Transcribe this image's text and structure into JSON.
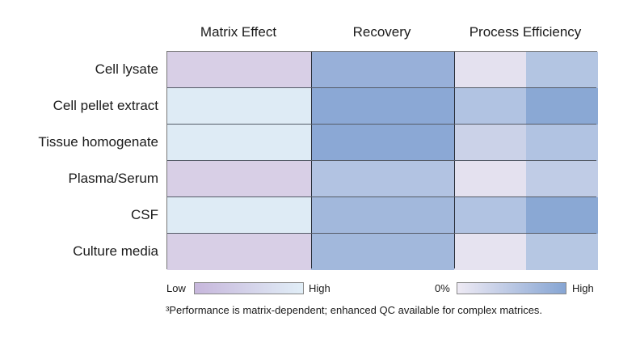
{
  "chart_data": {
    "type": "heatmap",
    "columns": [
      "Matrix Effect",
      "Recovery",
      "Process Efficiency"
    ],
    "rows": [
      "Cell lysate",
      "Cell pellet extract",
      "Tissue homogenate",
      "Plasma/Serum",
      "CSF",
      "Culture media"
    ],
    "cell_colors": {
      "matrix_effect": [
        "#d8cfe6",
        "#deebf5",
        "#deebf5",
        "#d8cfe6",
        "#deebf5",
        "#d8cfe6"
      ],
      "recovery": [
        "#98b0d9",
        "#8ba8d5",
        "#8ba8d5",
        "#b2c3e2",
        "#a2b8dc",
        "#a2b8dc"
      ],
      "process_efficiency_a": [
        "#e4e1ef",
        "#b1c3e2",
        "#cbd2e8",
        "#e4e1ef",
        "#b1c3e2",
        "#e6e3f0"
      ],
      "process_efficiency_b": [
        "#b3c5e2",
        "#8aa8d4",
        "#b1c3e2",
        "#c0cce6",
        "#8aa8d4",
        "#b6c7e3"
      ]
    },
    "legends": [
      {
        "low_label": "Low",
        "high_label": "High",
        "gradient": [
          "#c7b7dc",
          "#e1eef7"
        ]
      },
      {
        "low_label": "0%",
        "high_label": "High",
        "gradient": [
          "#eeeaf4",
          "#86a5d3"
        ]
      }
    ],
    "footnote": "³Performance is matrix-dependent; enhanced QC available for complex matrices."
  }
}
